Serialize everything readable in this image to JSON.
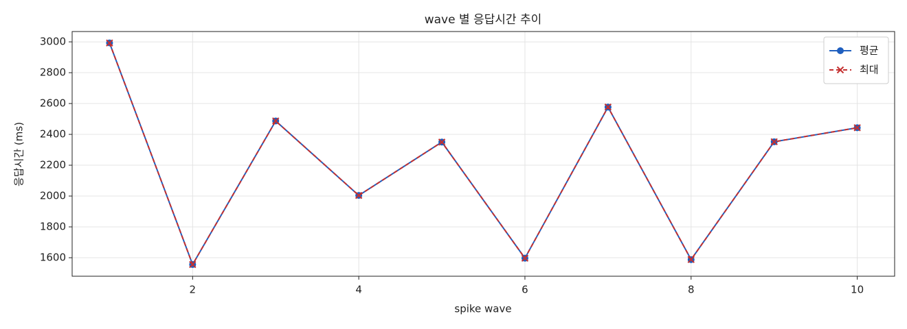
{
  "chart_data": {
    "type": "line",
    "title": "wave 별 응답시간 추이",
    "x_label": "spike wave",
    "y_label": "응답시간 (ms)",
    "x": [
      1,
      2,
      3,
      4,
      5,
      6,
      7,
      8,
      9,
      10
    ],
    "series": [
      {
        "name": "평균",
        "color": "#1f5fbf",
        "marker": "circle",
        "linestyle": "solid",
        "values": [
          2993,
          1556,
          2487,
          2004,
          2350,
          1597,
          2577,
          1588,
          2352,
          2443
        ]
      },
      {
        "name": "최대",
        "color": "#c43030",
        "marker": "x",
        "linestyle": "dashed",
        "values": [
          2993,
          1556,
          2487,
          2004,
          2350,
          1597,
          2577,
          1588,
          2352,
          2443
        ]
      }
    ],
    "xlim": [
      0.55,
      10.45
    ],
    "ylim": [
      1480,
      3067
    ],
    "xticks": [
      2,
      4,
      6,
      8,
      10
    ],
    "yticks": [
      1600,
      1800,
      2000,
      2200,
      2400,
      2600,
      2800,
      3000
    ],
    "grid": true,
    "legend": "upper right"
  }
}
